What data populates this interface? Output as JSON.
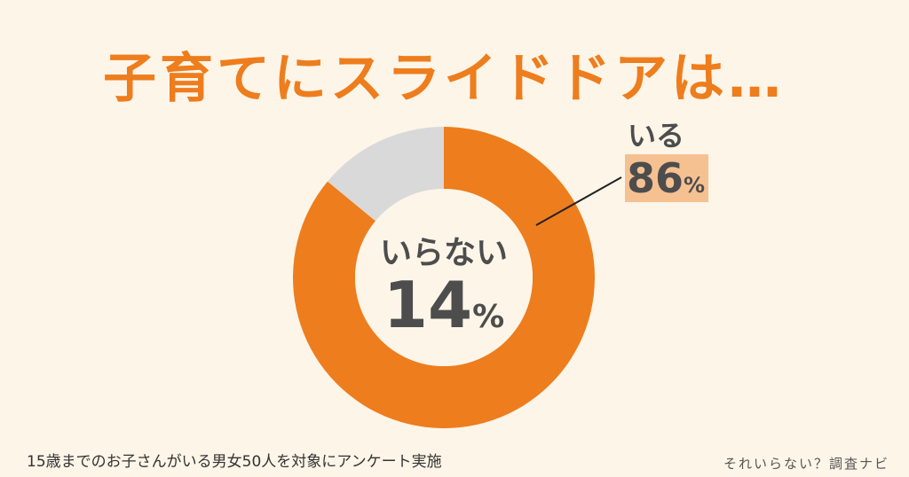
{
  "title": "子育てにスライドドアは…",
  "chart_data": {
    "type": "pie",
    "series": [
      {
        "name": "いる",
        "value": 86,
        "color": "#ee7d1d"
      },
      {
        "name": "いらない",
        "value": 14,
        "color": "#d9d9d9"
      }
    ],
    "labels": {
      "yes": {
        "name": "いる",
        "value": "86",
        "unit": "%"
      },
      "no": {
        "name": "いらない",
        "value": "14",
        "unit": "%"
      }
    }
  },
  "footnote": "15歳までのお子さんがいる男女50人を対象にアンケート実施",
  "brand": "それいらない？調査ナビ"
}
